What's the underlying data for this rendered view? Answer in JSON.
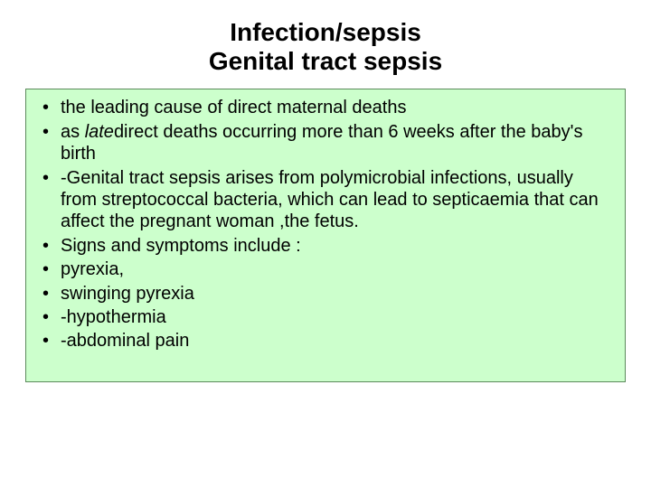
{
  "title": {
    "line1": "Infection/sepsis",
    "line2": "Genital tract sepsis"
  },
  "bullets": [
    {
      "text": "the leading cause of direct maternal deaths"
    },
    {
      "prefix": "as ",
      "italic": "late",
      "suffix": "direct deaths  occurring more than 6 weeks  after the baby's  birth"
    },
    {
      "text": "-Genital tract sepsis arises from polymicrobial infections, usually from streptococcal bacteria, which can lead to septicaemia that can affect the pregnant woman ,the fetus."
    },
    {
      "text": "Signs and symptoms  include :"
    },
    {
      "text": "pyrexia,"
    },
    {
      "text": " swinging pyrexia"
    },
    {
      "text": "-hypothermia"
    },
    {
      "text": "-abdominal pain"
    }
  ],
  "styles": {
    "background_color": "#ffffff",
    "box_background": "#ccffcc",
    "box_border": "#5c8a5c",
    "title_fontsize": 28,
    "body_fontsize": 20,
    "text_color": "#000000"
  }
}
